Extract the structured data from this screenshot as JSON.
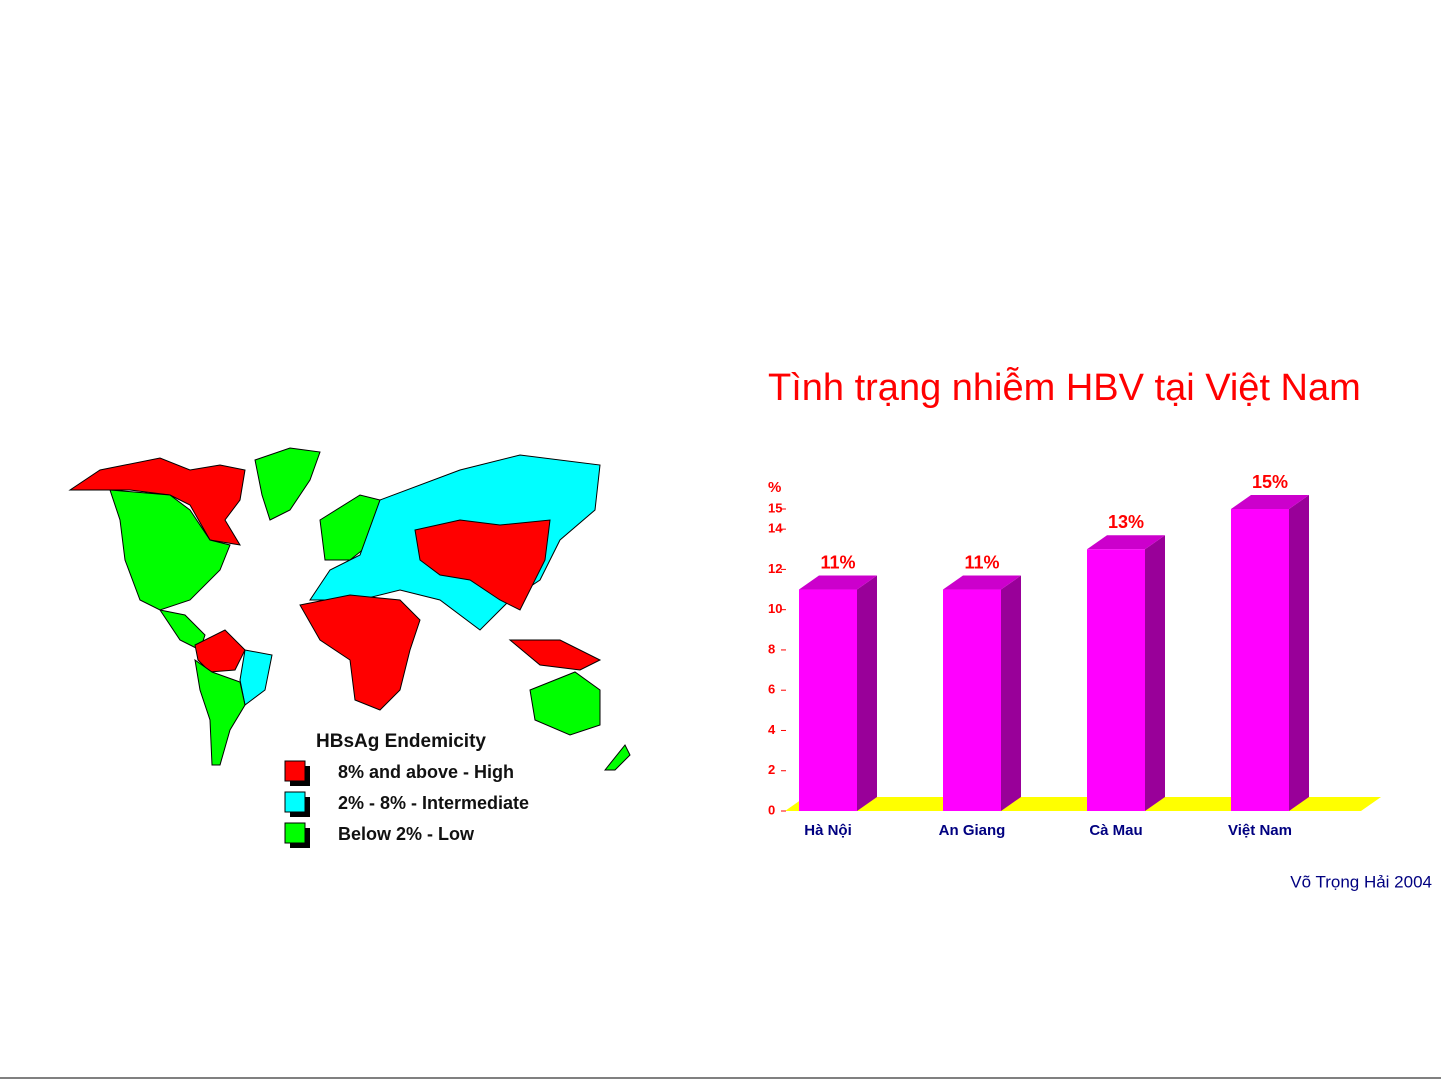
{
  "chart_data": {
    "type": "bar3d",
    "title": "Tình trạng nhiễm HBV tại Việt Nam",
    "y_label": "%",
    "categories": [
      "Hà Nội",
      "An Giang",
      "Cà Mau",
      "Việt Nam"
    ],
    "values": [
      11,
      11,
      13,
      15
    ],
    "value_labels": [
      "11%",
      "11%",
      "13%",
      "15%"
    ],
    "color": "#ff00ff",
    "ylim": [
      0,
      15
    ],
    "yticks": [
      0,
      2,
      4,
      6,
      8,
      10,
      12,
      14,
      15
    ]
  },
  "map_legend": {
    "title": "HBsAg Endemicity",
    "items": [
      {
        "label": "8%   and above - High",
        "color": "#ff0000"
      },
      {
        "label": "2%  - 8%   - Intermediate",
        "color": "#00ffff"
      },
      {
        "label": "Below 2%  - Low",
        "color": "#00ff00"
      }
    ]
  },
  "credit": "Võ Trọng Hải 2004"
}
